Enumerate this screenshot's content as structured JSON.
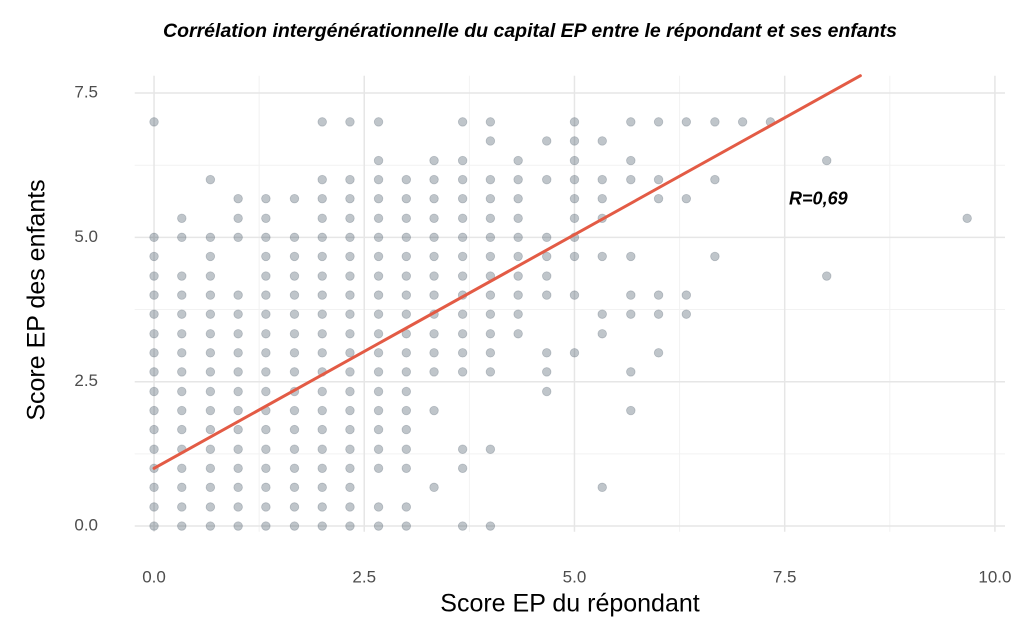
{
  "chart_data": {
    "type": "scatter",
    "title": "Corrélation intergénérationnelle du capital EP entre le répondant et ses enfants",
    "xlabel": "Score EP du répondant",
    "ylabel": "Score EP des enfants",
    "annotation": {
      "text": "R=0,69",
      "x": 7.9,
      "y": 5.65
    },
    "xlim": [
      -0.23,
      10.12
    ],
    "ylim": [
      -0.1,
      7.8
    ],
    "xticks": [
      {
        "value": 0,
        "label": "0.0"
      },
      2.5,
      {
        "value": 5,
        "label": "5.0"
      },
      7.5,
      {
        "value": 10,
        "label": "10.0"
      }
    ],
    "yticks": [
      {
        "value": 0,
        "label": "0.0"
      },
      2.5,
      {
        "value": 5,
        "label": "5.0"
      },
      7.5
    ],
    "grid": true,
    "color": "#2c3e50",
    "alpha": 0.3,
    "fit": {
      "x": [
        0,
        8.4
      ],
      "y": [
        1.0,
        7.8
      ],
      "color": "#e35b45"
    },
    "x": [
      0,
      0,
      0,
      0,
      0,
      0,
      0,
      0,
      0,
      0,
      0,
      0,
      0,
      0,
      0,
      0,
      0,
      0.33,
      0.33,
      0.33,
      0.33,
      0.33,
      0.33,
      0.33,
      0.33,
      0.33,
      0.33,
      0.33,
      0.33,
      0.33,
      0.33,
      0.33,
      0.33,
      0.67,
      0.67,
      0.67,
      0.67,
      0.67,
      0.67,
      0.67,
      0.67,
      0.67,
      0.67,
      0.67,
      0.67,
      0.67,
      0.67,
      0.67,
      0.67,
      0.67,
      1,
      1,
      1,
      1,
      1,
      1,
      1,
      1,
      1,
      1,
      1,
      1,
      1,
      1,
      1,
      1,
      1.33,
      1.33,
      1.33,
      1.33,
      1.33,
      1.33,
      1.33,
      1.33,
      1.33,
      1.33,
      1.33,
      1.33,
      1.33,
      1.33,
      1.33,
      1.33,
      1.33,
      1.33,
      1.67,
      1.67,
      1.67,
      1.67,
      1.67,
      1.67,
      1.67,
      1.67,
      1.67,
      1.67,
      1.67,
      1.67,
      1.67,
      1.67,
      1.67,
      1.67,
      1.67,
      2,
      2,
      2,
      2,
      2,
      2,
      2,
      2,
      2,
      2,
      2,
      2,
      2,
      2,
      2,
      2,
      2,
      2,
      2,
      2,
      2.33,
      2.33,
      2.33,
      2.33,
      2.33,
      2.33,
      2.33,
      2.33,
      2.33,
      2.33,
      2.33,
      2.33,
      2.33,
      2.33,
      2.33,
      2.33,
      2.33,
      2.33,
      2.33,
      2.33,
      2.67,
      2.67,
      2.67,
      2.67,
      2.67,
      2.67,
      2.67,
      2.67,
      2.67,
      2.67,
      2.67,
      2.67,
      2.67,
      2.67,
      2.67,
      2.67,
      2.67,
      2.67,
      2.67,
      2.67,
      3,
      3,
      3,
      3,
      3,
      3,
      3,
      3,
      3,
      3,
      3,
      3,
      3,
      3,
      3,
      3,
      3,
      3,
      3.33,
      3.33,
      3.33,
      3.33,
      3.33,
      3.33,
      3.33,
      3.33,
      3.33,
      3.33,
      3.33,
      3.33,
      3.33,
      3.33,
      3.67,
      3.67,
      3.67,
      3.67,
      3.67,
      3.67,
      3.67,
      3.67,
      3.67,
      3.67,
      3.67,
      3.67,
      3.67,
      3.67,
      3.67,
      3.67,
      4,
      4,
      4,
      4,
      4,
      4,
      4,
      4,
      4,
      4,
      4,
      4,
      4,
      4,
      4,
      4.33,
      4.33,
      4.33,
      4.33,
      4.33,
      4.33,
      4.33,
      4.33,
      4.33,
      4.33,
      4.67,
      4.67,
      4.67,
      4.67,
      4.67,
      4.67,
      4.67,
      4.67,
      4.67,
      5,
      5,
      5,
      5,
      5,
      5,
      5,
      5,
      5,
      5,
      5.33,
      5.33,
      5.33,
      5.33,
      5.33,
      5.33,
      5.33,
      5.33,
      5.67,
      5.67,
      5.67,
      5.67,
      5.67,
      5.67,
      5.67,
      5.67,
      6,
      6,
      6,
      6,
      6,
      6,
      6.33,
      6.33,
      6.33,
      6.33,
      6.67,
      6.67,
      6.67,
      7,
      7.33,
      8,
      8,
      9.67
    ],
    "y": [
      0,
      0.33,
      0.67,
      1,
      1.33,
      1.67,
      2,
      2.33,
      2.67,
      3,
      3.33,
      3.67,
      4,
      4.33,
      4.67,
      5,
      7,
      0,
      0.33,
      0.67,
      1,
      1.33,
      1.67,
      2,
      2.33,
      2.67,
      3,
      3.33,
      3.67,
      4,
      4.33,
      5,
      5.33,
      0,
      0.33,
      0.67,
      1,
      1.33,
      1.67,
      2,
      2.33,
      2.67,
      3,
      3.33,
      3.67,
      4,
      4.33,
      4.67,
      5,
      6,
      0,
      0.33,
      0.67,
      1,
      1.33,
      1.67,
      2,
      2.33,
      2.67,
      3,
      3.33,
      3.67,
      4,
      5,
      5.33,
      5.67,
      0,
      0.33,
      0.67,
      1,
      1.33,
      1.67,
      2,
      2.33,
      2.67,
      3,
      3.33,
      3.67,
      4,
      4.33,
      4.67,
      5,
      5.33,
      5.67,
      0,
      0.33,
      0.67,
      1,
      1.33,
      1.67,
      2,
      2.33,
      2.67,
      3,
      3.33,
      3.67,
      4,
      4.33,
      4.67,
      5,
      5.67,
      0,
      0.33,
      0.67,
      1,
      1.33,
      1.67,
      2,
      2.33,
      2.67,
      3,
      3.33,
      3.67,
      4,
      4.33,
      4.67,
      5,
      5.33,
      5.67,
      6,
      7,
      0,
      0.33,
      0.67,
      1,
      1.33,
      1.67,
      2,
      2.33,
      2.67,
      3,
      3.33,
      3.67,
      4,
      4.33,
      4.67,
      5,
      5.33,
      5.67,
      6,
      7,
      0,
      0.33,
      1,
      1.33,
      1.67,
      2,
      2.33,
      2.67,
      3,
      3.33,
      3.67,
      4,
      4.33,
      4.67,
      5,
      5.33,
      5.67,
      6,
      6.33,
      7,
      0,
      0.33,
      1,
      1.33,
      1.67,
      2,
      2.33,
      2.67,
      3,
      3.33,
      3.67,
      4,
      4.33,
      4.67,
      5,
      5.33,
      5.67,
      6,
      0.67,
      2,
      2.67,
      3,
      3.33,
      3.67,
      4,
      4.33,
      4.67,
      5,
      5.33,
      5.67,
      6,
      6.33,
      0,
      1,
      1.33,
      2.67,
      3,
      3.33,
      3.67,
      4,
      4.33,
      4.67,
      5,
      5.33,
      5.67,
      6,
      6.33,
      7,
      0,
      1.33,
      2.67,
      3,
      3.33,
      3.67,
      4,
      4.33,
      4.67,
      5,
      5.33,
      5.67,
      6,
      6.67,
      7,
      3.33,
      3.67,
      4,
      4.33,
      4.67,
      5,
      5.33,
      5.67,
      6,
      6.33,
      2.33,
      2.67,
      3,
      4,
      4.33,
      4.67,
      5,
      6,
      6.67,
      3,
      4,
      4.67,
      5,
      5.33,
      5.67,
      6,
      6.33,
      6.67,
      7,
      0.67,
      3.33,
      3.67,
      4.67,
      5.33,
      5.67,
      6,
      6.67,
      2,
      2.67,
      3.67,
      4,
      4.67,
      6,
      6.33,
      7,
      3,
      3.67,
      4,
      5.67,
      6,
      7,
      3.67,
      4,
      5.67,
      7,
      4.67,
      6,
      7,
      7,
      7,
      4.33,
      6.33,
      5.33
    ]
  }
}
